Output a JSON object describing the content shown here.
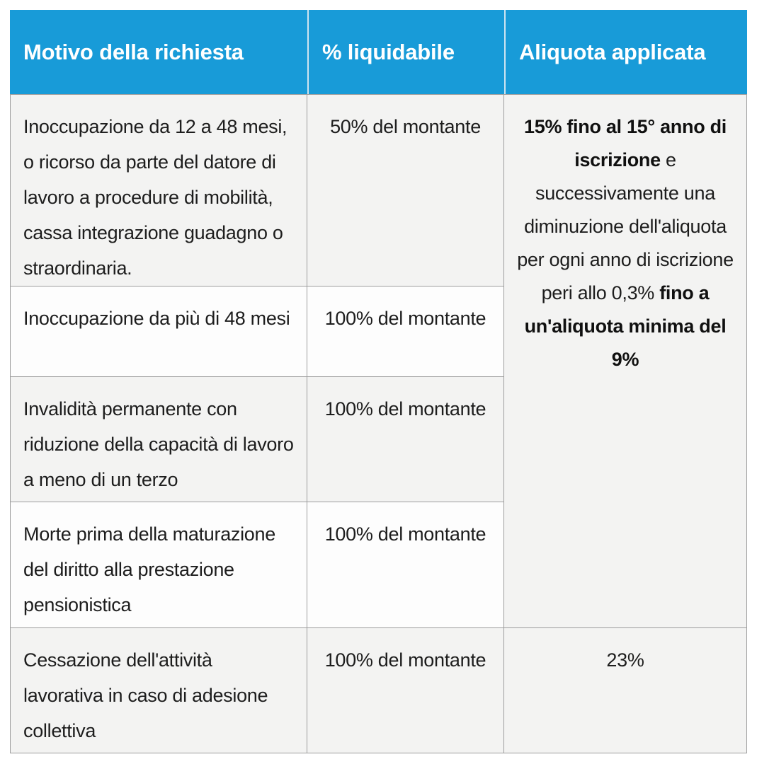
{
  "accent_color": "#189bd8",
  "row_gray_color": "#f3f3f2",
  "table": {
    "headers": [
      "Motivo della richiesta",
      "% liquidabile",
      "Aliquota applicata"
    ],
    "rows": [
      {
        "motivo": "Inoccupazione da 12 a 48 mesi, o ricorso da parte del datore di lavoro a procedure di mobilità, cassa integrazione guadagno o straordinaria.",
        "liquidabile": "50% del montante"
      },
      {
        "motivo": "Inoccupazione da più di 48 mesi",
        "liquidabile": "100% del montante"
      },
      {
        "motivo": "Invalidità permanente con riduzione della capacità di lavoro a meno di un terzo",
        "liquidabile": "100% del montante"
      },
      {
        "motivo": "Morte prima della maturazione del diritto alla prestazione pensionistica",
        "liquidabile": "100% del montante"
      },
      {
        "motivo": "Cessazione dell'attività lavorativa in caso di adesione collettiva",
        "liquidabile": "100% del montante"
      }
    ],
    "aliquota_merged": {
      "bold_1": "15% fino al 15° anno di iscrizione",
      "regular_1": " e successivamente una diminuzione dell'aliquota per ogni anno di iscrizione peri allo 0,3% ",
      "bold_2": "fino a un'aliquota minima del 9%"
    },
    "aliquota_last_row": "23%"
  }
}
